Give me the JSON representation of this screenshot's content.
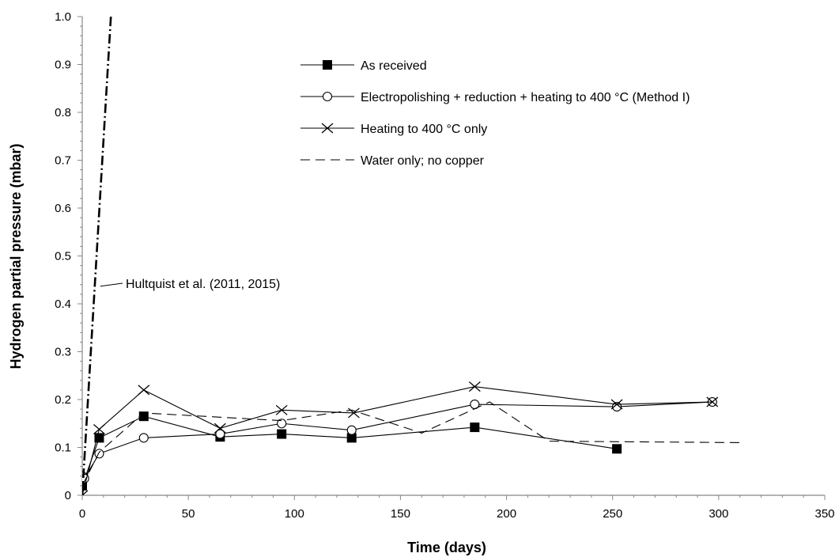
{
  "chart_data": {
    "type": "line",
    "xlabel": "Time (days)",
    "ylabel": "Hydrogen partial pressure (mbar)",
    "xlim": [
      0,
      350
    ],
    "ylim": [
      0,
      1.0
    ],
    "x_ticks": [
      0,
      50,
      100,
      150,
      200,
      250,
      300,
      350
    ],
    "y_ticks": [
      0,
      0.1,
      0.2,
      0.3,
      0.4,
      0.5,
      0.6,
      0.7,
      0.8,
      0.9,
      1.0
    ],
    "x_tick_labels": [
      "0",
      "50",
      "100",
      "150",
      "200",
      "250",
      "300",
      "350"
    ],
    "y_tick_labels": [
      "0",
      "0.1",
      "0.2",
      "0.3",
      "0.4",
      "0.5",
      "0.6",
      "0.7",
      "0.8",
      "0.9",
      "1.0"
    ],
    "grid": false,
    "legend_placement": "top-right",
    "series": [
      {
        "name": "As received",
        "marker": "filled-square",
        "line": "solid",
        "points": [
          [
            0,
            0.02
          ],
          [
            8,
            0.12
          ],
          [
            29,
            0.165
          ],
          [
            65,
            0.122
          ],
          [
            94,
            0.128
          ],
          [
            127,
            0.12
          ],
          [
            185,
            0.142
          ],
          [
            252,
            0.097
          ]
        ]
      },
      {
        "name": "Electropolishing + reduction + heating to 400 °C (Method I)",
        "marker": "open-circle",
        "line": "solid",
        "points": [
          [
            0,
            0.04
          ],
          [
            1,
            0.035
          ],
          [
            8,
            0.087
          ],
          [
            29,
            0.12
          ],
          [
            65,
            0.128
          ],
          [
            94,
            0.15
          ],
          [
            127,
            0.136
          ],
          [
            185,
            0.19
          ],
          [
            252,
            0.185
          ],
          [
            297,
            0.195
          ]
        ]
      },
      {
        "name": "Heating to 400 °C only",
        "marker": "x",
        "line": "solid",
        "points": [
          [
            0,
            0
          ],
          [
            8,
            0.138
          ],
          [
            29,
            0.22
          ],
          [
            65,
            0.14
          ],
          [
            94,
            0.178
          ],
          [
            128,
            0.172
          ],
          [
            185,
            0.227
          ],
          [
            252,
            0.19
          ],
          [
            297,
            0.195
          ]
        ]
      },
      {
        "name": "Water only; no copper",
        "marker": "none",
        "line": "dashed",
        "points": [
          [
            0,
            0.02
          ],
          [
            8,
            0.09
          ],
          [
            29,
            0.172
          ],
          [
            94,
            0.156
          ],
          [
            127,
            0.178
          ],
          [
            160,
            0.13
          ],
          [
            192,
            0.195
          ],
          [
            220,
            0.113
          ],
          [
            312,
            0.11
          ]
        ]
      },
      {
        "name": "Hultquist et al. (2011, 2015)",
        "marker": "none",
        "line": "dash-dot",
        "points": [
          [
            0,
            0
          ],
          [
            13.5,
            1.0
          ]
        ]
      }
    ],
    "annotations": [
      {
        "text": "Hultquist et al. (2011, 2015)",
        "points_to": [
          7,
          0.45
        ]
      }
    ]
  }
}
